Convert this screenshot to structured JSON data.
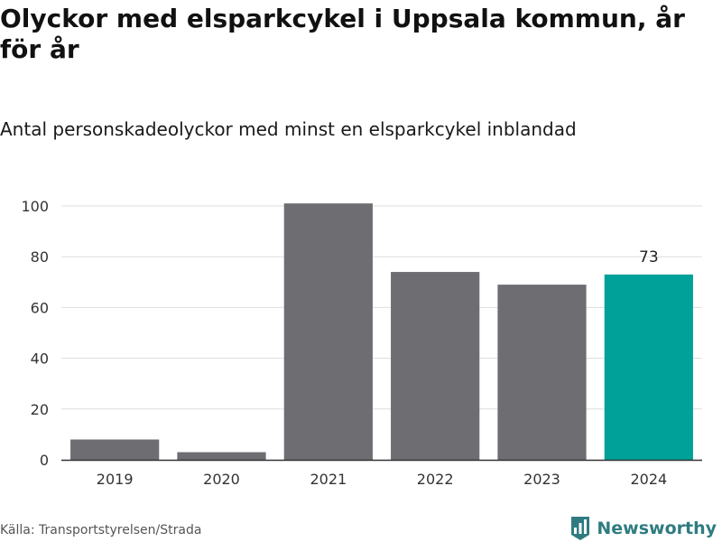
{
  "title": "Olyckor med elsparkcykel i Uppsala kommun, år för år",
  "subtitle": "Antal personskadeolyckor med minst en elsparkcykel inblandad",
  "source": "Källa: Transportstyrelsen/Strada",
  "brand": {
    "name": "Newsworthy",
    "icon": "newsworthy-logo-icon",
    "color": "#2f7c80"
  },
  "colors": {
    "bar": "#6e6d72",
    "highlight": "#00a199",
    "grid": "#dddddd",
    "axis": "#333333"
  },
  "chart_data": {
    "type": "bar",
    "title": "Olyckor med elsparkcykel i Uppsala kommun, år för år",
    "subtitle": "Antal personskadeolyckor med minst en elsparkcykel inblandad",
    "xlabel": "",
    "ylabel": "",
    "categories": [
      "2019",
      "2020",
      "2021",
      "2022",
      "2023",
      "2024"
    ],
    "values": [
      8,
      3,
      101,
      74,
      69,
      73
    ],
    "ylim": [
      0,
      100
    ],
    "yticks": [
      0,
      20,
      40,
      60,
      80,
      100
    ],
    "highlight_category": "2024",
    "data_labels": [
      {
        "category": "2024",
        "text": "73"
      }
    ],
    "grid": true,
    "legend": "none"
  }
}
